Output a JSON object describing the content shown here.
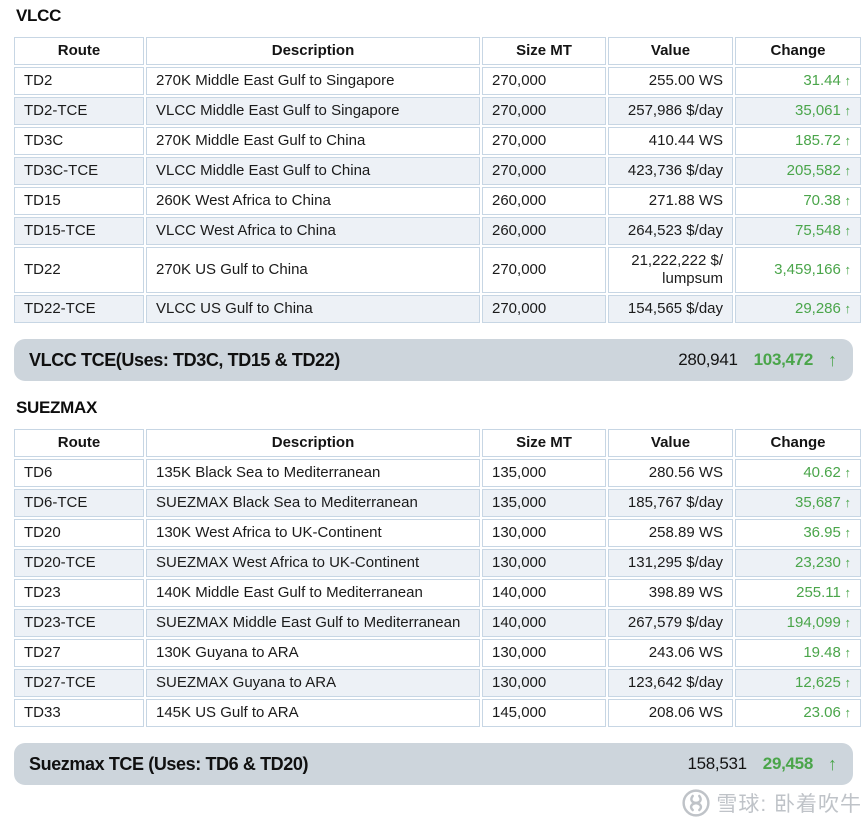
{
  "colors": {
    "change_green": "#4aa54a",
    "table_border": "#c7d6e4",
    "alt_row_bg": "#edf1f6",
    "summary_pill_bg": "#cdd5dc",
    "watermark_grey": "#bfc3c8"
  },
  "columns": [
    "Route",
    "Description",
    "Size MT",
    "Value",
    "Change"
  ],
  "sections": [
    {
      "title": "VLCC",
      "rows": [
        {
          "route": "TD2",
          "description": "270K Middle East Gulf to Singapore",
          "size": "270,000",
          "value": "255.00 WS",
          "change": "31.44"
        },
        {
          "route": "TD2-TCE",
          "description": "VLCC Middle East Gulf to Singapore",
          "size": "270,000",
          "value": "257,986 $/day",
          "change": "35,061"
        },
        {
          "route": "TD3C",
          "description": "270K Middle East Gulf to China",
          "size": "270,000",
          "value": "410.44 WS",
          "change": "185.72"
        },
        {
          "route": "TD3C-TCE",
          "description": "VLCC Middle East Gulf to China",
          "size": "270,000",
          "value": "423,736 $/day",
          "change": "205,582"
        },
        {
          "route": "TD15",
          "description": "260K West Africa to China",
          "size": "260,000",
          "value": "271.88 WS",
          "change": "70.38"
        },
        {
          "route": "TD15-TCE",
          "description": "VLCC West Africa to China",
          "size": "260,000",
          "value": "264,523 $/day",
          "change": "75,548"
        },
        {
          "route": "TD22",
          "description": "270K US Gulf to China",
          "size": "270,000",
          "value": "21,222,222 $/lumpsum",
          "change": "3,459,166"
        },
        {
          "route": "TD22-TCE",
          "description": "VLCC US Gulf to China",
          "size": "270,000",
          "value": "154,565 $/day",
          "change": "29,286"
        }
      ],
      "summary": {
        "label": "VLCC TCE(Uses: TD3C, TD15 & TD22)",
        "value": "280,941",
        "change": "103,472",
        "arrow": "↑"
      }
    },
    {
      "title": "SUEZMAX",
      "rows": [
        {
          "route": "TD6",
          "description": "135K Black Sea to Mediterranean",
          "size": "135,000",
          "value": "280.56 WS",
          "change": "40.62"
        },
        {
          "route": "TD6-TCE",
          "description": "SUEZMAX Black Sea to Mediterranean",
          "size": "135,000",
          "value": "185,767 $/day",
          "change": "35,687"
        },
        {
          "route": "TD20",
          "description": "130K West Africa to UK-Continent",
          "size": "130,000",
          "value": "258.89 WS",
          "change": "36.95"
        },
        {
          "route": "TD20-TCE",
          "description": "SUEZMAX West Africa to UK-Continent",
          "size": "130,000",
          "value": "131,295 $/day",
          "change": "23,230"
        },
        {
          "route": "TD23",
          "description": "140K Middle East Gulf to Mediterranean",
          "size": "140,000",
          "value": "398.89 WS",
          "change": "255.11"
        },
        {
          "route": "TD23-TCE",
          "description": "SUEZMAX Middle East Gulf to Mediterranean",
          "size": "140,000",
          "value": "267,579 $/day",
          "change": "194,099"
        },
        {
          "route": "TD27",
          "description": "130K Guyana to ARA",
          "size": "130,000",
          "value": "243.06 WS",
          "change": "19.48"
        },
        {
          "route": "TD27-TCE",
          "description": "SUEZMAX Guyana to ARA",
          "size": "130,000",
          "value": "123,642 $/day",
          "change": "12,625"
        },
        {
          "route": "TD33",
          "description": "145K US Gulf to ARA",
          "size": "145,000",
          "value": "208.06 WS",
          "change": "23.06"
        }
      ],
      "summary": {
        "label": "Suezmax TCE (Uses: TD6 & TD20)",
        "value": "158,531",
        "change": "29,458",
        "arrow": "↑"
      }
    }
  ],
  "change_arrow": "↑",
  "watermark": {
    "text": "雪球: 卧着吹牛",
    "logo": "xueqiu-logo"
  }
}
